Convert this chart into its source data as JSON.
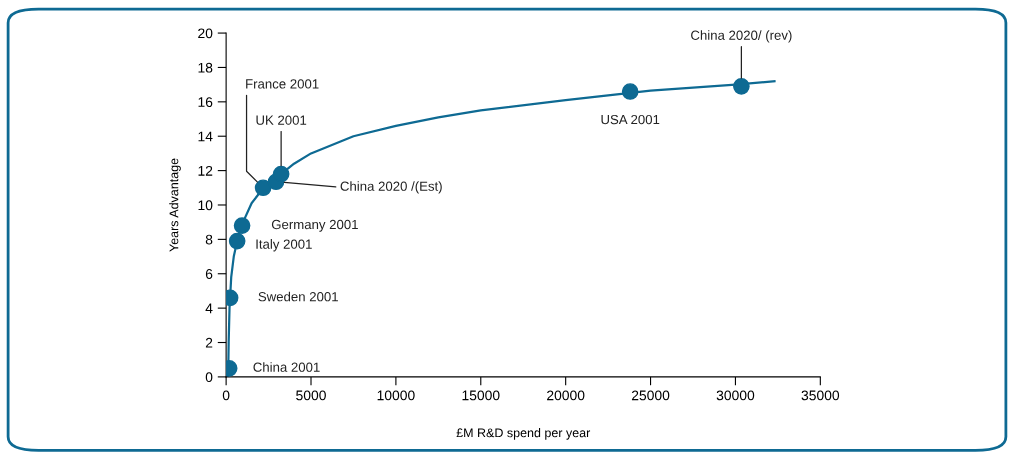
{
  "chart_data": {
    "type": "line",
    "xlabel": "£M R&D spend per year",
    "ylabel": "Years Advantage",
    "xlim": [
      0,
      35000
    ],
    "xticks": [
      0,
      5000,
      10000,
      15000,
      20000,
      25000,
      30000,
      35000
    ],
    "ylim": [
      0,
      20
    ],
    "yticks": [
      0,
      2,
      4,
      6,
      8,
      10,
      12,
      14,
      16,
      18,
      20
    ],
    "grid": false,
    "legend": false,
    "marker": "circle",
    "series": [
      {
        "marker": "none",
        "color": "#0e6a93",
        "x": [
          120,
          150,
          200,
          300,
          450,
          650,
          950,
          1500,
          2200,
          3000,
          4000,
          5000,
          7500,
          10000,
          12500,
          15000,
          20000,
          25000,
          30000,
          32300
        ],
        "values": [
          0,
          2,
          4,
          5.8,
          7,
          7.9,
          8.9,
          10.1,
          11.0,
          11.6,
          12.4,
          13.0,
          14.0,
          14.6,
          15.1,
          15.5,
          16.1,
          16.65,
          17.0,
          17.2
        ]
      },
      {
        "type": "scatter",
        "color": "#0e6a93",
        "x": [
          180,
          235,
          650,
          940,
          2180,
          2940,
          3240,
          23800,
          30350
        ],
        "values": [
          0.5,
          4.6,
          7.9,
          8.8,
          11.0,
          11.35,
          11.8,
          16.6,
          16.9
        ]
      }
    ],
    "annotations": [
      {
        "text": "China 2001",
        "x": 180,
        "y": 0.5
      },
      {
        "text": "Sweden 2001",
        "x": 235,
        "y": 4.6
      },
      {
        "text": "Italy 2001",
        "x": 650,
        "y": 7.9
      },
      {
        "text": "Germany 2001",
        "x": 940,
        "y": 8.8
      },
      {
        "text": "France 2001",
        "x": 2180,
        "y": 11.0
      },
      {
        "text": "China 2020 /(Est)",
        "x": 2940,
        "y": 11.35
      },
      {
        "text": "UK 2001",
        "x": 3240,
        "y": 11.8
      },
      {
        "text": "USA 2001",
        "x": 23800,
        "y": 16.6
      },
      {
        "text": "China 2020/ (rev)",
        "x": 30350,
        "y": 16.9
      }
    ]
  }
}
